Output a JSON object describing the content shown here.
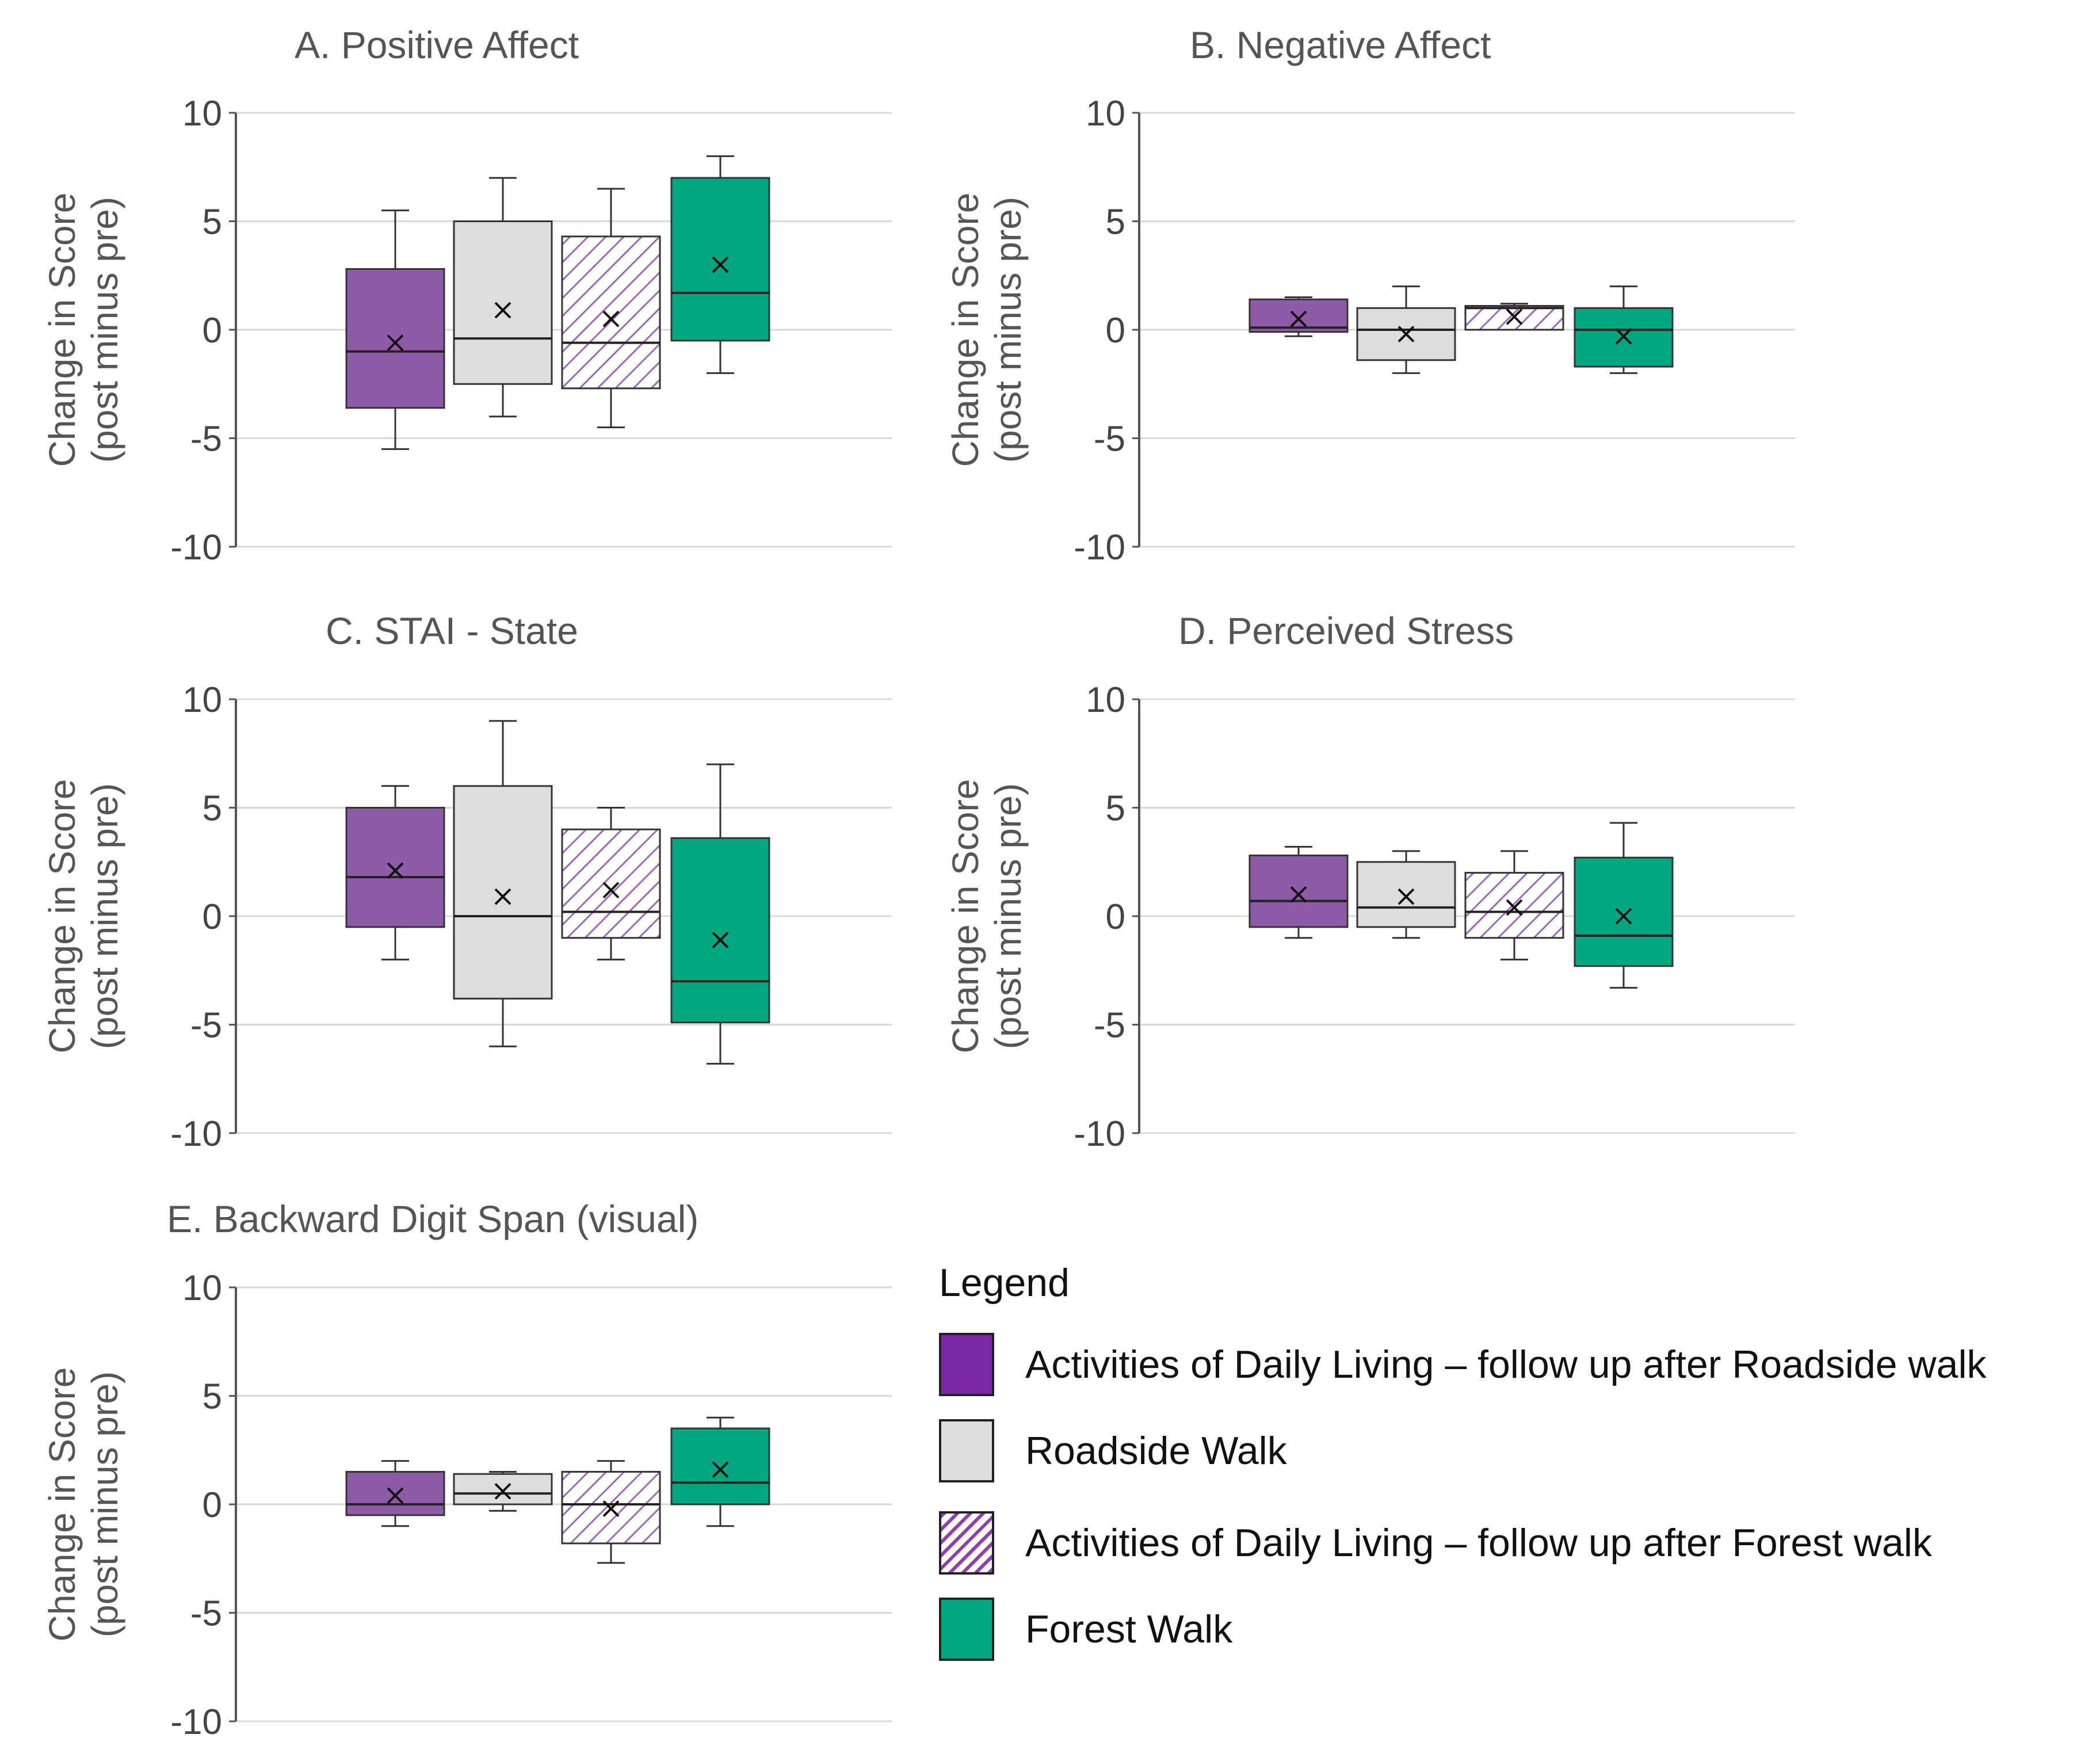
{
  "legend": {
    "title": "Legend",
    "items": [
      {
        "label": "Activities of Daily Living – follow up after Roadside walk",
        "style": "adl-roadside",
        "color": "#8E5BA8"
      },
      {
        "label": "Roadside Walk",
        "style": "roadside",
        "color": "#DDDDDD"
      },
      {
        "label": "Activities of Daily Living – follow up after Forest walk",
        "style": "adl-forest",
        "color": "#9B6AB5"
      },
      {
        "label": "Forest Walk",
        "style": "forest",
        "color": "#00A77F"
      }
    ]
  },
  "colors": {
    "adl_roadside": "#8E5BA8",
    "roadside": "#DDDDDD",
    "adl_forest_hatch": "#9B6AB5",
    "forest": "#00A77F",
    "gridline": "#D9D9D9",
    "axis": "#555555"
  },
  "chart_data": [
    {
      "type": "box",
      "title": "A. Positive Affect",
      "ylabel": [
        "Change in Score",
        "(post minus pre)"
      ],
      "ylim": [
        -10,
        10
      ],
      "yticks": [
        10,
        5,
        0,
        -5,
        -10
      ],
      "boxes": [
        {
          "group": "Activities of Daily Living – follow up after Roadside walk",
          "style": "adl-roadside",
          "min": -5.5,
          "q1": -3.6,
          "median": -1.0,
          "q3": 2.8,
          "max": 5.5,
          "mean": -0.6
        },
        {
          "group": "Roadside Walk",
          "style": "roadside",
          "min": -4.0,
          "q1": -2.5,
          "median": -0.4,
          "q3": 5.0,
          "max": 7.0,
          "mean": 0.9
        },
        {
          "group": "Activities of Daily Living – follow up after Forest walk",
          "style": "adl-forest",
          "min": -4.5,
          "q1": -2.7,
          "median": -0.6,
          "q3": 4.3,
          "max": 6.5,
          "mean": 0.5
        },
        {
          "group": "Forest Walk",
          "style": "forest",
          "min": -2.0,
          "q1": -0.5,
          "median": 1.7,
          "q3": 7.0,
          "max": 8.0,
          "mean": 3.0
        }
      ]
    },
    {
      "type": "box",
      "title": "B. Negative Affect",
      "ylabel": [
        "Change in Score",
        "(post minus pre)"
      ],
      "ylim": [
        -10,
        10
      ],
      "yticks": [
        10,
        5,
        0,
        -5,
        -10
      ],
      "boxes": [
        {
          "group": "Activities of Daily Living – follow up after Roadside walk",
          "style": "adl-roadside",
          "min": -0.3,
          "q1": -0.1,
          "median": 0.1,
          "q3": 1.4,
          "max": 1.5,
          "mean": 0.5
        },
        {
          "group": "Roadside Walk",
          "style": "roadside",
          "min": -2.0,
          "q1": -1.4,
          "median": 0.0,
          "q3": 1.0,
          "max": 2.0,
          "mean": -0.2
        },
        {
          "group": "Activities of Daily Living – follow up after Forest walk",
          "style": "adl-forest",
          "min": 0.0,
          "q1": 0.0,
          "median": 1.0,
          "q3": 1.1,
          "max": 1.2,
          "mean": 0.6
        },
        {
          "group": "Forest Walk",
          "style": "forest",
          "min": -2.0,
          "q1": -1.7,
          "median": 0.0,
          "q3": 1.0,
          "max": 2.0,
          "mean": -0.3
        }
      ]
    },
    {
      "type": "box",
      "title": "C. STAI - State",
      "ylabel": [
        "Change in Score",
        "(post minus pre)"
      ],
      "ylim": [
        -10,
        10
      ],
      "yticks": [
        10,
        5,
        0,
        -5,
        -10
      ],
      "boxes": [
        {
          "group": "Activities of Daily Living – follow up after Roadside walk",
          "style": "adl-roadside",
          "min": -2.0,
          "q1": -0.5,
          "median": 1.8,
          "q3": 5.0,
          "max": 6.0,
          "mean": 2.1
        },
        {
          "group": "Roadside Walk",
          "style": "roadside",
          "min": -6.0,
          "q1": -3.8,
          "median": 0.0,
          "q3": 6.0,
          "max": 9.0,
          "mean": 0.9
        },
        {
          "group": "Activities of Daily Living – follow up after Forest walk",
          "style": "adl-forest",
          "min": -2.0,
          "q1": -1.0,
          "median": 0.2,
          "q3": 4.0,
          "max": 5.0,
          "mean": 1.2
        },
        {
          "group": "Forest Walk",
          "style": "forest",
          "min": -6.8,
          "q1": -4.9,
          "median": -3.0,
          "q3": 3.6,
          "max": 7.0,
          "mean": -1.1
        }
      ]
    },
    {
      "type": "box",
      "title": "D. Perceived Stress",
      "ylabel": [
        "Change in Score",
        "(post minus pre)"
      ],
      "ylim": [
        -10,
        10
      ],
      "yticks": [
        10,
        5,
        0,
        -5,
        -10
      ],
      "boxes": [
        {
          "group": "Activities of Daily Living – follow up after Roadside walk",
          "style": "adl-roadside",
          "min": -1.0,
          "q1": -0.5,
          "median": 0.7,
          "q3": 2.8,
          "max": 3.2,
          "mean": 1.0
        },
        {
          "group": "Roadside Walk",
          "style": "roadside",
          "min": -1.0,
          "q1": -0.5,
          "median": 0.4,
          "q3": 2.5,
          "max": 3.0,
          "mean": 0.9
        },
        {
          "group": "Activities of Daily Living – follow up after Forest walk",
          "style": "adl-forest",
          "min": -2.0,
          "q1": -1.0,
          "median": 0.2,
          "q3": 2.0,
          "max": 3.0,
          "mean": 0.4
        },
        {
          "group": "Forest Walk",
          "style": "forest",
          "min": -3.3,
          "q1": -2.3,
          "median": -0.9,
          "q3": 2.7,
          "max": 4.3,
          "mean": 0.0
        }
      ]
    },
    {
      "type": "box",
      "title": "E. Backward Digit Span (visual)",
      "ylabel": [
        "Change in Score",
        "(post minus pre)"
      ],
      "ylim": [
        -10,
        10
      ],
      "yticks": [
        10,
        5,
        0,
        -5,
        -10
      ],
      "boxes": [
        {
          "group": "Activities of Daily Living – follow up after Roadside walk",
          "style": "adl-roadside",
          "min": -1.0,
          "q1": -0.5,
          "median": 0.0,
          "q3": 1.5,
          "max": 2.0,
          "mean": 0.4
        },
        {
          "group": "Roadside Walk",
          "style": "roadside",
          "min": -0.3,
          "q1": 0.0,
          "median": 0.5,
          "q3": 1.4,
          "max": 1.5,
          "mean": 0.6
        },
        {
          "group": "Activities of Daily Living – follow up after Forest walk",
          "style": "adl-forest",
          "min": -2.7,
          "q1": -1.8,
          "median": 0.0,
          "q3": 1.5,
          "max": 2.0,
          "mean": -0.2
        },
        {
          "group": "Forest Walk",
          "style": "forest",
          "min": -1.0,
          "q1": 0.0,
          "median": 1.0,
          "q3": 3.5,
          "max": 4.0,
          "mean": 1.6
        }
      ]
    }
  ]
}
